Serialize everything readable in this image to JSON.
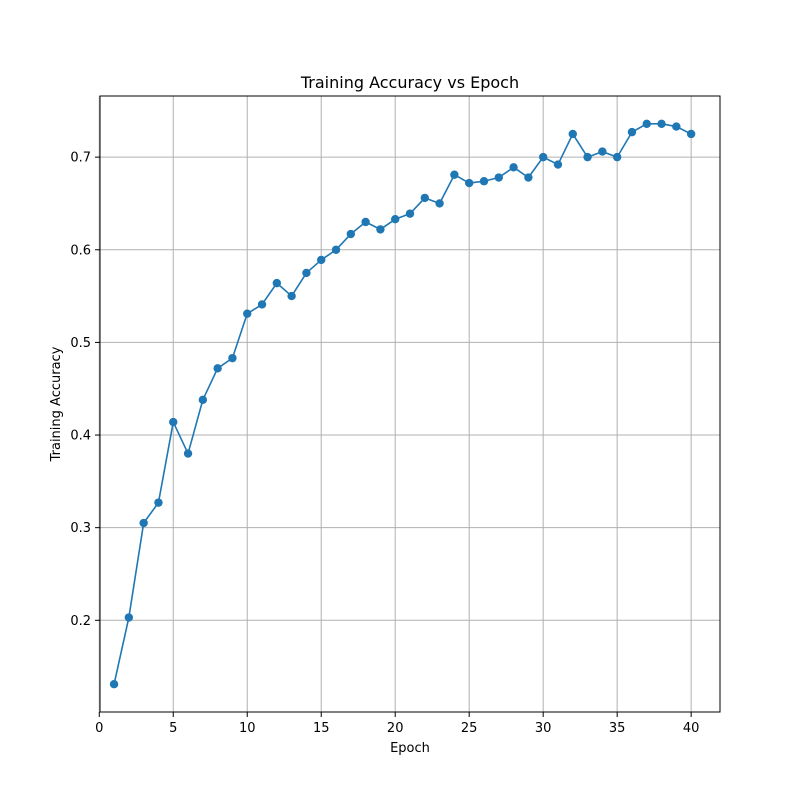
{
  "chart_data": {
    "type": "line",
    "title": "Training Accuracy vs Epoch",
    "xlabel": "Epoch",
    "ylabel": "Training Accuracy",
    "xlim": [
      0.05,
      41.95
    ],
    "ylim": [
      0.101,
      0.766
    ],
    "xticks": [
      0,
      5,
      10,
      15,
      20,
      25,
      30,
      35,
      40
    ],
    "yticks": [
      0.2,
      0.3,
      0.4,
      0.5,
      0.6,
      0.7
    ],
    "grid": true,
    "series_color": "#1f77b4",
    "marker": "circle",
    "x": [
      1,
      2,
      3,
      4,
      5,
      6,
      7,
      8,
      9,
      10,
      11,
      12,
      13,
      14,
      15,
      16,
      17,
      18,
      19,
      20,
      21,
      22,
      23,
      24,
      25,
      26,
      27,
      28,
      29,
      30,
      31,
      32,
      33,
      34,
      35,
      36,
      37,
      38,
      39,
      40
    ],
    "y": [
      0.131,
      0.203,
      0.305,
      0.327,
      0.414,
      0.38,
      0.438,
      0.472,
      0.483,
      0.531,
      0.541,
      0.564,
      0.55,
      0.575,
      0.589,
      0.6,
      0.617,
      0.63,
      0.622,
      0.633,
      0.639,
      0.656,
      0.65,
      0.681,
      0.672,
      0.674,
      0.678,
      0.689,
      0.678,
      0.7,
      0.692,
      0.725,
      0.7,
      0.706,
      0.7,
      0.727,
      0.736,
      0.736,
      0.733,
      0.725
    ]
  }
}
